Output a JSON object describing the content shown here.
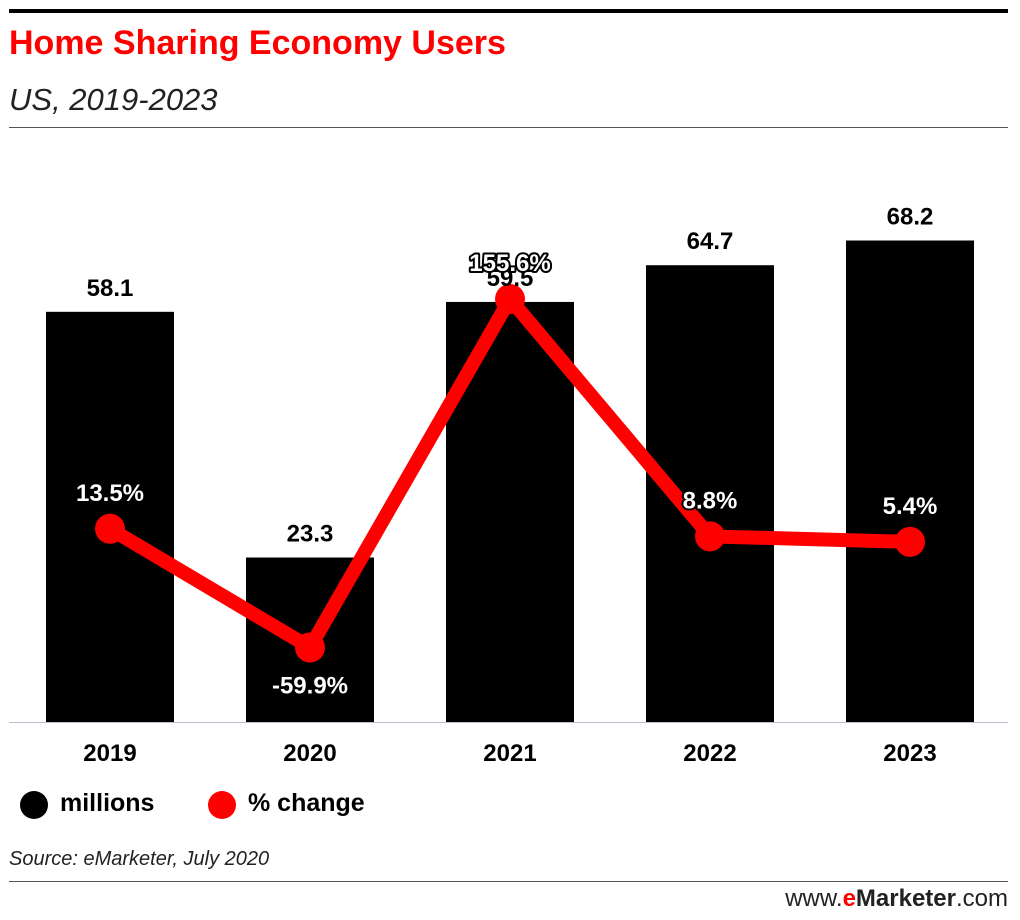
{
  "header": {
    "title": "Home Sharing Economy Users",
    "subtitle": "US, 2019-2023"
  },
  "chart_data": {
    "type": "bar",
    "categories": [
      "2019",
      "2020",
      "2021",
      "2022",
      "2023"
    ],
    "series": [
      {
        "name": "millions",
        "type": "bar",
        "color": "#000000",
        "values": [
          58.1,
          23.3,
          59.5,
          64.7,
          68.2
        ],
        "labels": [
          "58.1",
          "23.3",
          "59.5",
          "64.7",
          "68.2"
        ]
      },
      {
        "name": "% change",
        "type": "line",
        "color": "#ff0000",
        "values": [
          13.5,
          -59.9,
          155.6,
          8.8,
          5.4
        ],
        "labels": [
          "13.5%",
          "-59.9%",
          "155.6%",
          "8.8%",
          "5.4%"
        ]
      }
    ],
    "legend_position": "bottom-left",
    "grid": false
  },
  "legend": {
    "items": [
      {
        "label": "millions",
        "color": "#000000"
      },
      {
        "label": "% change",
        "color": "#ff0000"
      }
    ]
  },
  "footer": {
    "source": "Source: eMarketer, July 2020",
    "brand_prefix": "www.",
    "brand_e": "e",
    "brand_name": "Marketer",
    "brand_suffix": ".com"
  }
}
